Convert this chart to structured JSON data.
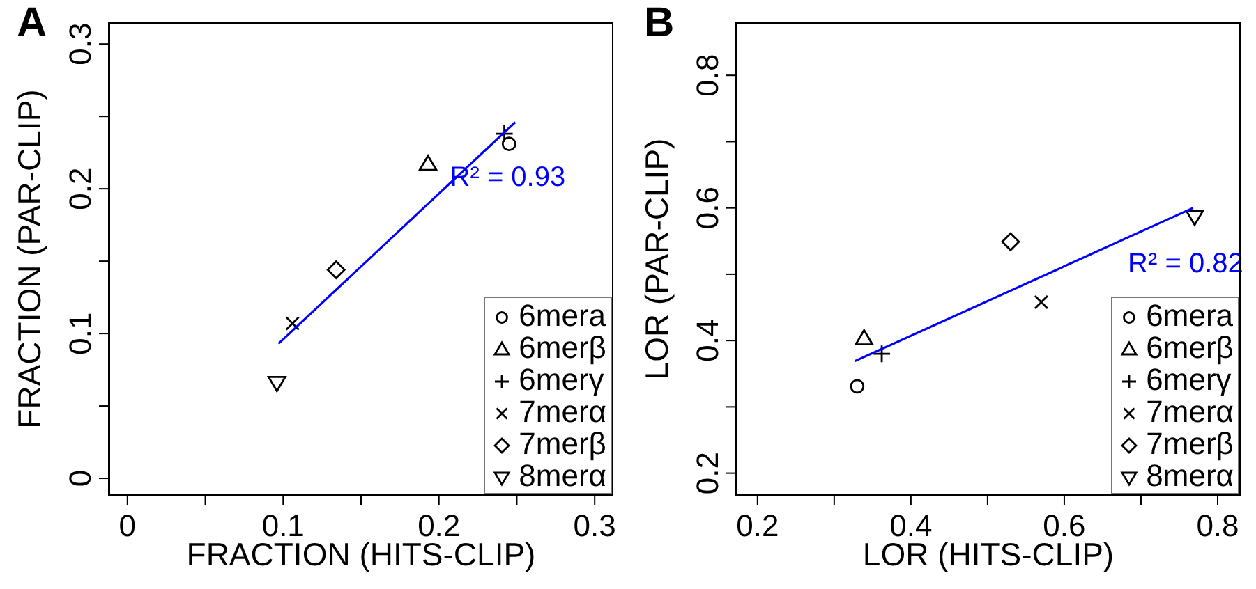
{
  "chart_data": [
    {
      "type": "scatter",
      "title": "A",
      "xlabel": "FRACTION (HITS-CLIP)",
      "ylabel": "FRACTION (PAR-CLIP)",
      "xlim": [
        -0.012,
        0.312
      ],
      "ylim": [
        -0.012,
        0.315
      ],
      "xticks": [
        0,
        {
          "value": 0.05,
          "label": null
        },
        0.1,
        {
          "value": 0.15,
          "label": null
        },
        0.2,
        {
          "value": 0.25,
          "label": null
        },
        0.3
      ],
      "yticks": [
        0,
        {
          "value": 0.05,
          "label": null
        },
        0.1,
        {
          "value": 0.15,
          "label": null
        },
        0.2,
        {
          "value": 0.25,
          "label": null
        },
        0.3
      ],
      "legend": "bottom right",
      "annotations": [
        "R² = 0.93"
      ],
      "series": [
        {
          "name": "6mera",
          "color": "#000000",
          "marker": "circle",
          "x": [
            0.245
          ],
          "values": [
            0.231
          ]
        },
        {
          "name": "6merβ",
          "color": "#000000",
          "marker": "triangle",
          "x": [
            0.193
          ],
          "values": [
            0.217
          ]
        },
        {
          "name": "6merγ",
          "color": "#000000",
          "marker": "plus",
          "x": [
            0.242
          ],
          "values": [
            0.238
          ]
        },
        {
          "name": "7merα",
          "color": "#000000",
          "marker": "cross",
          "x": [
            0.106
          ],
          "values": [
            0.107
          ]
        },
        {
          "name": "7merβ",
          "color": "#000000",
          "marker": "diamond",
          "x": [
            0.134
          ],
          "values": [
            0.144
          ]
        },
        {
          "name": "8merα",
          "color": "#000000",
          "marker": "triangle-down",
          "x": [
            0.096
          ],
          "values": [
            0.066
          ]
        },
        {
          "type": "line",
          "color": "#0000ff",
          "x": [
            0.097,
            0.249
          ],
          "values": [
            0.093,
            0.246
          ]
        }
      ]
    },
    {
      "type": "scatter",
      "title": "B",
      "xlabel": "LOR (HITS-CLIP)",
      "ylabel": "LOR (PAR-CLIP)",
      "xlim": [
        0.172,
        0.83
      ],
      "ylim": [
        0.166,
        0.88
      ],
      "xticks": [
        0.2,
        {
          "value": 0.3,
          "label": null
        },
        0.4,
        {
          "value": 0.5,
          "label": null
        },
        0.6,
        {
          "value": 0.7,
          "label": null
        },
        0.8
      ],
      "yticks": [
        0.2,
        {
          "value": 0.3,
          "label": null
        },
        0.4,
        {
          "value": 0.5,
          "label": null
        },
        0.6,
        {
          "value": 0.7,
          "label": null
        },
        0.8
      ],
      "legend": "bottom right",
      "annotations": [
        "R² = 0.82"
      ],
      "series": [
        {
          "name": "6mera",
          "color": "#000000",
          "marker": "circle",
          "x": [
            0.33
          ],
          "values": [
            0.331
          ]
        },
        {
          "name": "6merβ",
          "color": "#000000",
          "marker": "triangle",
          "x": [
            0.339
          ],
          "values": [
            0.403
          ]
        },
        {
          "name": "6merγ",
          "color": "#000000",
          "marker": "plus",
          "x": [
            0.362
          ],
          "values": [
            0.38
          ]
        },
        {
          "name": "7merα",
          "color": "#000000",
          "marker": "cross",
          "x": [
            0.57
          ],
          "values": [
            0.458
          ]
        },
        {
          "name": "7merβ",
          "color": "#000000",
          "marker": "diamond",
          "x": [
            0.53
          ],
          "values": [
            0.549
          ]
        },
        {
          "name": "8merα",
          "color": "#000000",
          "marker": "triangle-down",
          "x": [
            0.77
          ],
          "values": [
            0.587
          ]
        },
        {
          "type": "line",
          "color": "#0000ff",
          "x": [
            0.327,
            0.768
          ],
          "values": [
            0.369,
            0.6
          ]
        }
      ]
    }
  ]
}
